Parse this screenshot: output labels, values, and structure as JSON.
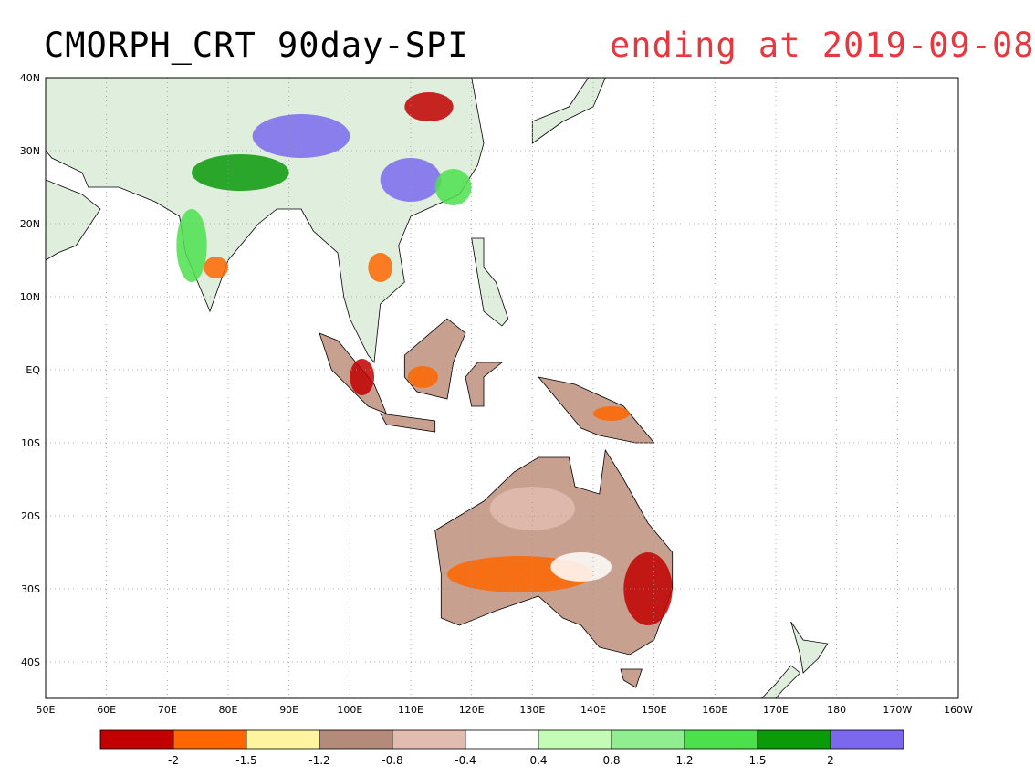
{
  "title": "CMORPH_CRT 90day-SPI",
  "subtitle": "ending at 2019-09-08",
  "map": {
    "lon_range": [
      50,
      200
    ],
    "lat_range": [
      -45,
      40
    ],
    "grid": true,
    "x_ticks": [
      {
        "lon": 50,
        "label": "50E"
      },
      {
        "lon": 60,
        "label": "60E"
      },
      {
        "lon": 70,
        "label": "70E"
      },
      {
        "lon": 80,
        "label": "80E"
      },
      {
        "lon": 90,
        "label": "90E"
      },
      {
        "lon": 100,
        "label": "100E"
      },
      {
        "lon": 110,
        "label": "110E"
      },
      {
        "lon": 120,
        "label": "120E"
      },
      {
        "lon": 130,
        "label": "130E"
      },
      {
        "lon": 140,
        "label": "140E"
      },
      {
        "lon": 150,
        "label": "150E"
      },
      {
        "lon": 160,
        "label": "160E"
      },
      {
        "lon": 170,
        "label": "170E"
      },
      {
        "lon": 180,
        "label": "180"
      },
      {
        "lon": 190,
        "label": "170W"
      },
      {
        "lon": 200,
        "label": "160W"
      }
    ],
    "y_ticks": [
      {
        "lat": 40,
        "label": "40N"
      },
      {
        "lat": 30,
        "label": "30N"
      },
      {
        "lat": 20,
        "label": "20N"
      },
      {
        "lat": 10,
        "label": "10N"
      },
      {
        "lat": 0,
        "label": "EQ"
      },
      {
        "lat": -10,
        "label": "10S"
      },
      {
        "lat": -20,
        "label": "20S"
      },
      {
        "lat": -30,
        "label": "30S"
      },
      {
        "lat": -40,
        "label": "40S"
      }
    ]
  },
  "colorbar": {
    "colors": [
      "#c10000",
      "#ff6600",
      "#fff5a0",
      "#b48a7b",
      "#e2bcb0",
      "#ffffff",
      "#c4fbb6",
      "#90ee90",
      "#4de04d",
      "#0a9a0a",
      "#7b68ee"
    ],
    "labels": [
      "-2",
      "-1.5",
      "-1.2",
      "-0.8",
      "-0.4",
      "0.4",
      "0.8",
      "1.2",
      "1.5",
      "2"
    ]
  },
  "regions": [
    {
      "name": "asia-mainland",
      "fill": "#dfeedd",
      "points": [
        [
          50,
          40
        ],
        [
          120,
          40
        ],
        [
          122,
          31
        ],
        [
          121,
          28
        ],
        [
          118,
          24
        ],
        [
          110,
          21
        ],
        [
          108,
          17
        ],
        [
          109,
          12
        ],
        [
          105,
          9
        ],
        [
          104,
          1
        ],
        [
          103,
          2
        ],
        [
          100,
          7
        ],
        [
          99,
          10
        ],
        [
          98,
          16
        ],
        [
          94,
          19
        ],
        [
          92,
          22
        ],
        [
          88,
          22
        ],
        [
          85,
          20
        ],
        [
          80,
          15
        ],
        [
          77,
          8
        ],
        [
          73,
          16
        ],
        [
          72,
          21
        ],
        [
          68,
          23
        ],
        [
          62,
          25
        ],
        [
          57,
          25
        ],
        [
          56,
          27
        ],
        [
          51,
          29
        ],
        [
          50,
          30
        ]
      ]
    },
    {
      "name": "arabia",
      "fill": "#dfeedd",
      "points": [
        [
          50,
          26
        ],
        [
          56,
          24
        ],
        [
          59,
          22
        ],
        [
          55,
          17
        ],
        [
          52,
          16
        ],
        [
          50,
          15
        ]
      ]
    },
    {
      "name": "sumatra",
      "fill": "#c8a090",
      "points": [
        [
          95,
          5
        ],
        [
          98,
          4
        ],
        [
          104,
          -2
        ],
        [
          106,
          -6
        ],
        [
          103,
          -5
        ],
        [
          97,
          0
        ]
      ]
    },
    {
      "name": "borneo",
      "fill": "#c8a090",
      "points": [
        [
          109,
          2
        ],
        [
          116,
          7
        ],
        [
          119,
          5
        ],
        [
          117,
          1
        ],
        [
          116,
          -4
        ],
        [
          111,
          -3
        ],
        [
          109,
          -1
        ]
      ]
    },
    {
      "name": "java",
      "fill": "#c8a090",
      "points": [
        [
          105,
          -6
        ],
        [
          114,
          -7
        ],
        [
          114,
          -8.5
        ],
        [
          106,
          -7.5
        ]
      ]
    },
    {
      "name": "sulawesi",
      "fill": "#c8a090",
      "points": [
        [
          119,
          -1
        ],
        [
          121,
          1
        ],
        [
          125,
          1
        ],
        [
          122,
          -1
        ],
        [
          122,
          -5
        ],
        [
          120,
          -5
        ]
      ]
    },
    {
      "name": "new-guinea",
      "fill": "#c8a090",
      "points": [
        [
          131,
          -1
        ],
        [
          137,
          -2
        ],
        [
          145,
          -5
        ],
        [
          150,
          -10
        ],
        [
          147,
          -10
        ],
        [
          141,
          -9
        ],
        [
          138,
          -8
        ],
        [
          134,
          -4
        ]
      ]
    },
    {
      "name": "philippines",
      "fill": "#dfeedd",
      "points": [
        [
          120,
          18
        ],
        [
          122,
          18
        ],
        [
          122,
          14
        ],
        [
          124,
          12
        ],
        [
          126,
          7
        ],
        [
          125,
          6
        ],
        [
          122,
          8
        ],
        [
          121,
          13
        ]
      ]
    },
    {
      "name": "japan",
      "fill": "#dfeedd",
      "points": [
        [
          130,
          31
        ],
        [
          135,
          34
        ],
        [
          140,
          36
        ],
        [
          142,
          40
        ],
        [
          140,
          41
        ],
        [
          136,
          36
        ],
        [
          130,
          34
        ]
      ]
    },
    {
      "name": "australia",
      "fill": "#c8a090",
      "points": [
        [
          114,
          -22
        ],
        [
          122,
          -18
        ],
        [
          127,
          -14
        ],
        [
          131,
          -12
        ],
        [
          136,
          -12
        ],
        [
          137,
          -16
        ],
        [
          141,
          -17
        ],
        [
          142,
          -11
        ],
        [
          145,
          -15
        ],
        [
          149,
          -21
        ],
        [
          153,
          -25
        ],
        [
          153,
          -30
        ],
        [
          150,
          -37
        ],
        [
          146,
          -39
        ],
        [
          141,
          -38
        ],
        [
          138,
          -35
        ],
        [
          135,
          -34
        ],
        [
          131,
          -31
        ],
        [
          124,
          -33
        ],
        [
          118,
          -35
        ],
        [
          115,
          -34
        ],
        [
          115,
          -28
        ]
      ]
    },
    {
      "name": "tasmania",
      "fill": "#c8a090",
      "points": [
        [
          144.5,
          -41
        ],
        [
          148,
          -41
        ],
        [
          147,
          -43.5
        ],
        [
          145,
          -42.5
        ]
      ]
    },
    {
      "name": "new-zealand-north",
      "fill": "#dfeedd",
      "points": [
        [
          172.5,
          -34.5
        ],
        [
          174.5,
          -37
        ],
        [
          178.5,
          -37.5
        ],
        [
          177,
          -39.5
        ],
        [
          174.5,
          -41.5
        ],
        [
          174,
          -39
        ]
      ]
    },
    {
      "name": "new-zealand-south",
      "fill": "#dfeedd",
      "points": [
        [
          172.5,
          -40.5
        ],
        [
          174,
          -41.5
        ],
        [
          171,
          -44
        ],
        [
          169,
          -46
        ],
        [
          166.5,
          -46
        ],
        [
          170,
          -43
        ]
      ]
    }
  ],
  "patches": [
    {
      "name": "india-wet-band",
      "fill": "#4de04d",
      "lon": 74,
      "lat": 17,
      "rx": 2.5,
      "ry": 5
    },
    {
      "name": "himalaya-wet",
      "fill": "#0a9a0a",
      "lon": 82,
      "lat": 27,
      "rx": 8,
      "ry": 2.5
    },
    {
      "name": "tibet-wet",
      "fill": "#7b68ee",
      "lon": 92,
      "lat": 32,
      "rx": 8,
      "ry": 3
    },
    {
      "name": "china-wet",
      "fill": "#7b68ee",
      "lon": 110,
      "lat": 26,
      "rx": 5,
      "ry": 3
    },
    {
      "name": "china-south-wet",
      "fill": "#4de04d",
      "lon": 117,
      "lat": 25,
      "rx": 3,
      "ry": 2.5
    },
    {
      "name": "north-china-dry",
      "fill": "#c10000",
      "lon": 113,
      "lat": 36,
      "rx": 4,
      "ry": 2
    },
    {
      "name": "india-dry",
      "fill": "#ff6600",
      "lon": 78,
      "lat": 14,
      "rx": 2,
      "ry": 1.5
    },
    {
      "name": "indochina-dry",
      "fill": "#ff6600",
      "lon": 105,
      "lat": 14,
      "rx": 2,
      "ry": 2
    },
    {
      "name": "sumatra-dry",
      "fill": "#c10000",
      "lon": 102,
      "lat": -1,
      "rx": 2,
      "ry": 2.5
    },
    {
      "name": "borneo-dry",
      "fill": "#ff6600",
      "lon": 112,
      "lat": -1,
      "rx": 2.5,
      "ry": 1.5
    },
    {
      "name": "new-guinea-dry",
      "fill": "#ff6600",
      "lon": 143,
      "lat": -6,
      "rx": 3,
      "ry": 1
    },
    {
      "name": "australia-south-dry",
      "fill": "#ff6600",
      "lon": 128,
      "lat": -28,
      "rx": 12,
      "ry": 2.5
    },
    {
      "name": "australia-east-dry",
      "fill": "#c10000",
      "lon": 149,
      "lat": -30,
      "rx": 4,
      "ry": 5
    },
    {
      "name": "australia-interior-white",
      "fill": "#ffffff",
      "lon": 138,
      "lat": -27,
      "rx": 5,
      "ry": 2
    },
    {
      "name": "australia-north-light",
      "fill": "#e2bcb0",
      "lon": 130,
      "lat": -19,
      "rx": 7,
      "ry": 3
    }
  ]
}
